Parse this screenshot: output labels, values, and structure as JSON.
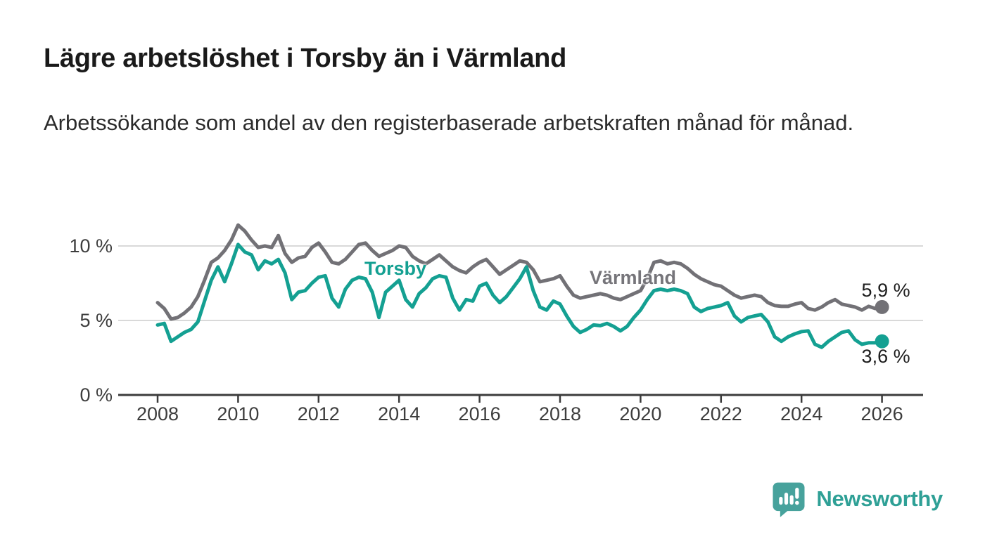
{
  "header": {
    "title": "Lägre arbetslöshet i Torsby än i Värmland",
    "subtitle": "Arbetssökande som andel av den registerbaserade arbetskraften månad för månad."
  },
  "chart_data": {
    "type": "line",
    "title": "Lägre arbetslöshet i Torsby än i Värmland",
    "unit": "%",
    "x_start": 2008,
    "x_end": 2026,
    "points_per_year": 6,
    "note": "values estimated from plot, one point per 2 months",
    "xticks": [
      2008,
      2010,
      2012,
      2014,
      2016,
      2018,
      2020,
      2022,
      2024,
      2026
    ],
    "yticks": [
      {
        "value": 0,
        "label": "0 %"
      },
      {
        "value": 5,
        "label": "5 %"
      },
      {
        "value": 10,
        "label": "10 %"
      }
    ],
    "ylim": [
      0,
      12
    ],
    "grid": "horizontal",
    "legend_position": "inline-on-line",
    "series": [
      {
        "name": "Värmland",
        "color": "#727176",
        "label_color": "#76757a",
        "end_label": "5,9 %",
        "end_value": 5.9,
        "values": [
          6.2,
          5.8,
          5.1,
          5.2,
          5.5,
          5.9,
          6.6,
          7.7,
          8.9,
          9.2,
          9.7,
          10.4,
          11.4,
          11.0,
          10.4,
          9.9,
          10.0,
          9.9,
          10.7,
          9.5,
          8.9,
          9.2,
          9.3,
          9.9,
          10.2,
          9.6,
          8.9,
          8.8,
          9.1,
          9.6,
          10.1,
          10.2,
          9.7,
          9.3,
          9.5,
          9.7,
          10.0,
          9.9,
          9.3,
          9.0,
          8.8,
          9.1,
          9.4,
          9.0,
          8.6,
          8.35,
          8.2,
          8.6,
          8.9,
          9.1,
          8.6,
          8.1,
          8.4,
          8.7,
          9.0,
          8.9,
          8.4,
          7.6,
          7.7,
          7.8,
          8.0,
          7.3,
          6.7,
          6.5,
          6.6,
          6.7,
          6.8,
          6.7,
          6.5,
          6.4,
          6.6,
          6.8,
          7.0,
          7.8,
          8.9,
          9.0,
          8.8,
          8.9,
          8.8,
          8.5,
          8.1,
          7.8,
          7.6,
          7.4,
          7.3,
          7.0,
          6.7,
          6.5,
          6.6,
          6.7,
          6.6,
          6.2,
          6.0,
          5.95,
          5.95,
          6.1,
          6.2,
          5.8,
          5.7,
          5.9,
          6.2,
          6.4,
          6.1,
          6.0,
          5.9,
          5.7,
          5.95,
          5.8,
          5.9
        ]
      },
      {
        "name": "Torsby",
        "color": "#14a092",
        "label_color": "#14a092",
        "end_label": "3,6 %",
        "end_value": 3.6,
        "values": [
          4.7,
          4.8,
          3.6,
          3.9,
          4.2,
          4.4,
          4.9,
          6.3,
          7.7,
          8.6,
          7.6,
          8.8,
          10.1,
          9.6,
          9.4,
          8.4,
          9.0,
          8.8,
          9.1,
          8.2,
          6.4,
          6.9,
          7.0,
          7.5,
          7.9,
          8.0,
          6.5,
          5.9,
          7.1,
          7.7,
          7.9,
          7.8,
          6.9,
          5.2,
          6.9,
          7.3,
          7.7,
          6.4,
          5.9,
          6.8,
          7.2,
          7.8,
          8.0,
          7.9,
          6.5,
          5.7,
          6.4,
          6.3,
          7.3,
          7.5,
          6.7,
          6.2,
          6.6,
          7.2,
          7.8,
          8.6,
          7.0,
          5.9,
          5.7,
          6.3,
          6.1,
          5.3,
          4.6,
          4.2,
          4.4,
          4.7,
          4.65,
          4.8,
          4.6,
          4.3,
          4.6,
          5.2,
          5.7,
          6.4,
          7.0,
          7.1,
          7.0,
          7.1,
          7.0,
          6.8,
          5.9,
          5.6,
          5.8,
          5.9,
          6.0,
          6.2,
          5.3,
          4.9,
          5.2,
          5.3,
          5.4,
          4.9,
          3.9,
          3.6,
          3.9,
          4.1,
          4.25,
          4.3,
          3.4,
          3.2,
          3.6,
          3.9,
          4.2,
          4.3,
          3.7,
          3.4,
          3.5,
          3.5,
          3.6
        ]
      }
    ]
  },
  "logo": {
    "text": "Newsworthy",
    "mark_color": "#47a29c",
    "text_color": "#2fa096"
  }
}
